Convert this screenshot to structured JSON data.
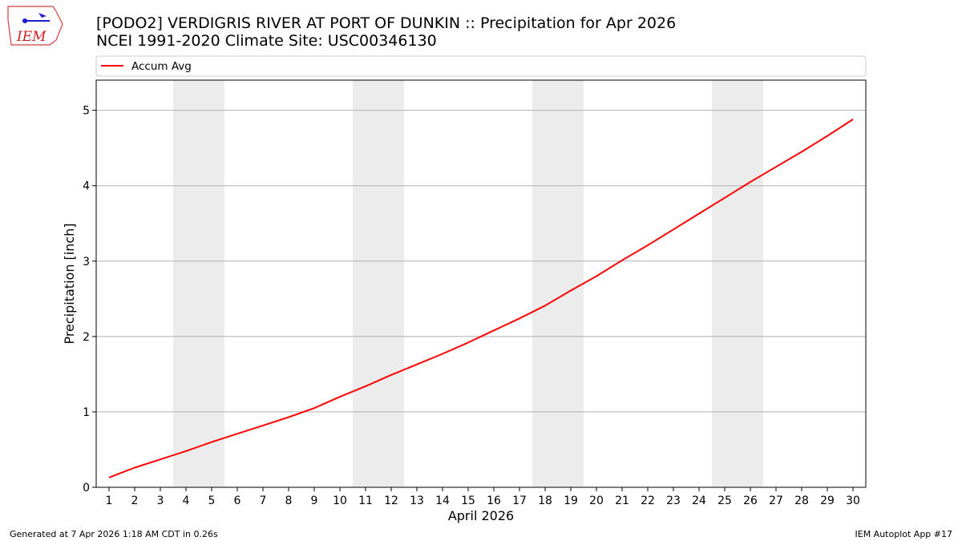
{
  "header": {
    "title_line1": "[PODO2] VERDIGRIS RIVER  AT PORT OF DUNKIN :: Precipitation for Apr 2026",
    "title_line2": "NCEI 1991-2020 Climate Site: USC00346130",
    "logo_text": "IEM"
  },
  "footer": {
    "generated": "Generated at 7 Apr 2026 1:18 AM CDT in 0.26s",
    "app": "IEM Autoplot App #17"
  },
  "chart_data": {
    "type": "line",
    "xlabel": "April 2026",
    "ylabel": "Precipitation [inch]",
    "xlim": [
      0.5,
      30.5
    ],
    "ylim": [
      0,
      5.4
    ],
    "x_ticks": [
      1,
      2,
      3,
      4,
      5,
      6,
      7,
      8,
      9,
      10,
      11,
      12,
      13,
      14,
      15,
      16,
      17,
      18,
      19,
      20,
      21,
      22,
      23,
      24,
      25,
      26,
      27,
      28,
      29,
      30
    ],
    "y_ticks": [
      0,
      1,
      2,
      3,
      4,
      5
    ],
    "grid": "horizontal",
    "legend_position": "top",
    "weekend_bands": [
      [
        3.5,
        5.5
      ],
      [
        10.5,
        12.5
      ],
      [
        17.5,
        19.5
      ],
      [
        24.5,
        26.5
      ]
    ],
    "series": [
      {
        "name": "Accum Avg",
        "color": "#ff0000",
        "x": [
          1,
          2,
          3,
          4,
          5,
          6,
          7,
          8,
          9,
          10,
          11,
          12,
          13,
          14,
          15,
          16,
          17,
          18,
          19,
          20,
          21,
          22,
          23,
          24,
          25,
          26,
          27,
          28,
          29,
          30
        ],
        "values": [
          0.13,
          0.26,
          0.37,
          0.48,
          0.6,
          0.71,
          0.82,
          0.93,
          1.05,
          1.2,
          1.34,
          1.49,
          1.63,
          1.77,
          1.92,
          2.08,
          2.24,
          2.41,
          2.61,
          2.8,
          3.01,
          3.21,
          3.42,
          3.63,
          3.84,
          4.05,
          4.25,
          4.45,
          4.66,
          4.88
        ]
      }
    ]
  }
}
